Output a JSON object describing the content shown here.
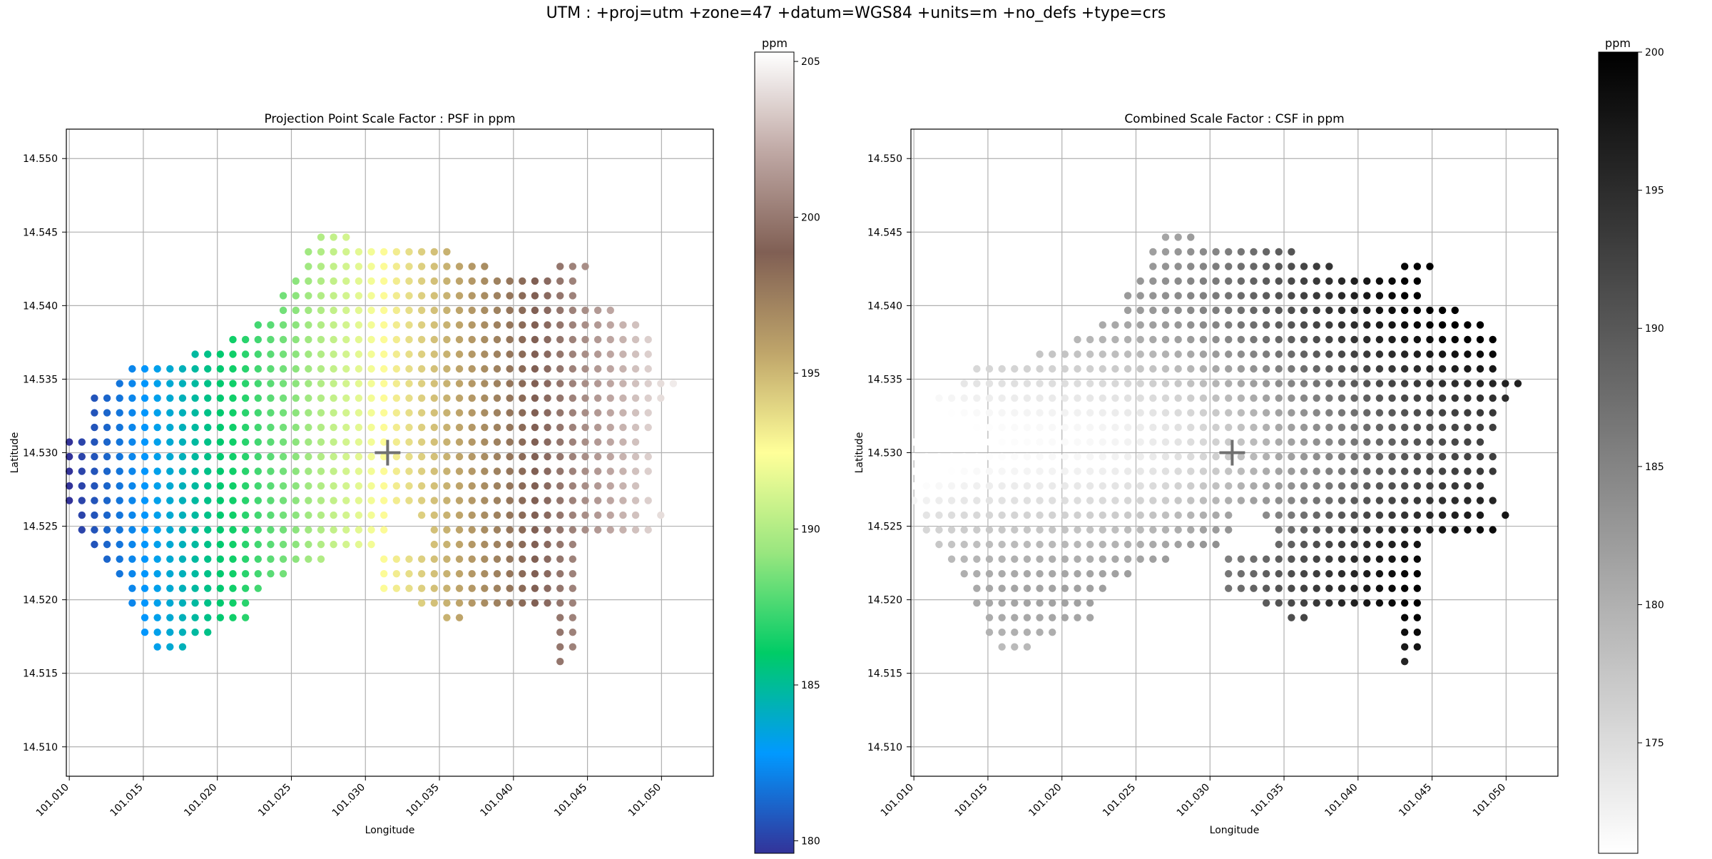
{
  "suptitle": "UTM : +proj=utm +zone=47 +datum=WGS84 +units=m +no_defs +type=crs",
  "chart_data": [
    {
      "type": "scatter",
      "title": "Projection Point Scale Factor : PSF in ppm",
      "xlabel": "Longitude",
      "ylabel": "Latitude",
      "xlim": [
        101.0098,
        101.0535
      ],
      "ylim": [
        14.508,
        14.552
      ],
      "xticks": [
        "101.010",
        "101.015",
        "101.020",
        "101.025",
        "101.030",
        "101.035",
        "101.040",
        "101.045",
        "101.050"
      ],
      "yticks": [
        "14.510",
        "14.515",
        "14.520",
        "14.525",
        "14.530",
        "14.535",
        "14.540",
        "14.545",
        "14.550"
      ],
      "grid": true,
      "colormap": "terrain",
      "color_value": "PSF (ppm)",
      "color_range": [
        179.6,
        205.3
      ],
      "marker": {
        "label": "+",
        "x": 101.0315,
        "y": 14.53
      },
      "colorbar": {
        "label": "ppm",
        "ticks": [
          "180",
          "185",
          "190",
          "195",
          "200",
          "205"
        ],
        "min": 179.6,
        "max": 205.3,
        "stops": [
          "#333399",
          "#0199ff",
          "#00cc66",
          "#99e67f",
          "#ffff99",
          "#bfa56a",
          "#805f54",
          "#bfa8a4",
          "#ffffff"
        ]
      }
    },
    {
      "type": "scatter",
      "title": "Combined Scale Factor : CSF in ppm",
      "xlabel": "Longitude",
      "ylabel": "Latitude",
      "xlim": [
        101.0098,
        101.0535
      ],
      "ylim": [
        14.508,
        14.552
      ],
      "xticks": [
        "101.010",
        "101.015",
        "101.020",
        "101.025",
        "101.030",
        "101.035",
        "101.040",
        "101.045",
        "101.050"
      ],
      "yticks": [
        "14.510",
        "14.515",
        "14.520",
        "14.525",
        "14.530",
        "14.535",
        "14.540",
        "14.545",
        "14.550"
      ],
      "grid": true,
      "colormap": "Greys",
      "color_value": "CSF (ppm)",
      "color_range": [
        171.0,
        200.0
      ],
      "marker": {
        "label": "+",
        "x": 101.0315,
        "y": 14.53
      },
      "colorbar": {
        "label": "ppm",
        "ticks": [
          "175",
          "180",
          "185",
          "190",
          "195",
          "200"
        ],
        "min": 171.0,
        "max": 200.0,
        "stops": [
          "#ffffff",
          "#000000"
        ]
      }
    }
  ]
}
